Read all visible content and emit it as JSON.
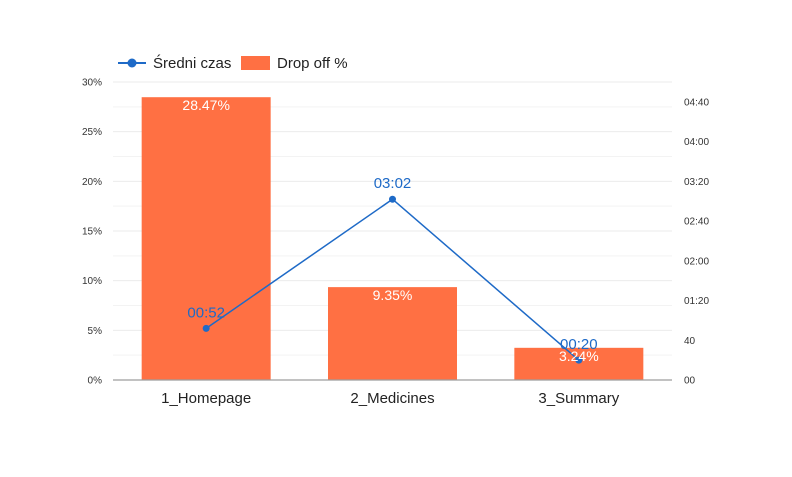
{
  "colors": {
    "bar": "#ff7043",
    "line": "#1e6ac7",
    "grid": "#ebebeb",
    "axis": "#9e9e9e"
  },
  "chart_data": {
    "type": "bar",
    "categories": [
      "1_Homepage",
      "2_Medicines",
      "3_Summary"
    ],
    "series": [
      {
        "name": "Drop off %",
        "type": "bar",
        "axis": "left",
        "values": [
          28.47,
          9.35,
          3.24
        ],
        "labels": [
          "28.47%",
          "9.35%",
          "3.24%"
        ]
      },
      {
        "name": "Średni czas",
        "type": "line",
        "axis": "right",
        "values": [
          "00:52",
          "03:02",
          "00:20"
        ],
        "labels": [
          "00:52",
          "03:02",
          "00:20"
        ]
      }
    ],
    "y_left": {
      "ylim": [
        0,
        30
      ],
      "ticks": [
        0,
        5,
        10,
        15,
        20,
        25,
        30
      ],
      "tick_labels": [
        "0%",
        "5%",
        "10%",
        "15%",
        "20%",
        "25%",
        "30%"
      ]
    },
    "y_right": {
      "ylim": [
        "00:00",
        "05:00"
      ],
      "ticks": [
        "00:00",
        "00:40",
        "01:20",
        "02:00",
        "02:40",
        "03:20",
        "04:00",
        "04:40"
      ],
      "tick_labels": [
        "00",
        "40",
        "01:20",
        "02:00",
        "02:40",
        "03:20",
        "04:00",
        "04:40"
      ]
    },
    "legend": {
      "position": "top-left",
      "entries": [
        "Średni czas",
        "Drop off %"
      ]
    },
    "grid": true
  }
}
